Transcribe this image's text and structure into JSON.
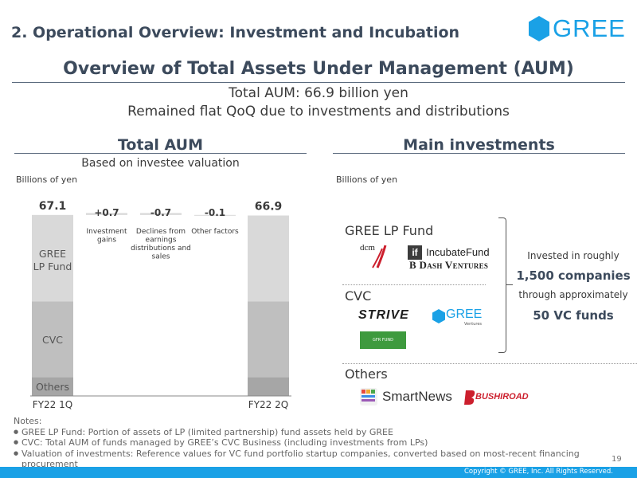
{
  "header": {
    "slide_title": "2. Operational Overview: Investment and Incubation",
    "logo_text": "GREE",
    "brand_color": "#1aa1e6"
  },
  "main": {
    "heading": "Overview of Total Assets Under Management (AUM)",
    "line1": "Total AUM: 66.9 billion yen",
    "line2": "Remained flat QoQ due to investments and distributions"
  },
  "left": {
    "heading": "Total AUM",
    "subheading": "Based on investee valuation",
    "unit": "Billions of yen"
  },
  "chart_data": {
    "type": "bar",
    "subtype": "waterfall",
    "title": "Total AUM",
    "subtitle": "Based on investee valuation",
    "ylabel": "Billions of yen",
    "categories": [
      "FY22 1Q",
      "Investment gains",
      "Declines from earnings distributions and sales",
      "Other factors",
      "FY22 2Q"
    ],
    "totals": [
      {
        "label": "FY22 1Q",
        "total": 67.1,
        "total_label": "67.1"
      },
      {
        "label": "FY22 2Q",
        "total": 66.9,
        "total_label": "66.9"
      }
    ],
    "deltas": [
      {
        "label": "Investment gains",
        "value": 0.7,
        "value_label": "+0.7"
      },
      {
        "label": "Declines from earnings distributions and sales",
        "value": -0.7,
        "value_label": "-0.7"
      },
      {
        "label": "Other factors",
        "value": -0.1,
        "value_label": "-0.1"
      }
    ],
    "series": [
      {
        "name": "Others",
        "label": "Others",
        "values_1q": 7,
        "values_2q": 7,
        "color": "#a6a6a6"
      },
      {
        "name": "CVC",
        "label": "CVC",
        "values_1q": 28,
        "values_2q": 28,
        "color": "#bfbfbf"
      },
      {
        "name": "GREE LP Fund",
        "label": "GREE\nLP Fund",
        "values_1q": 32.1,
        "values_2q": 31.9,
        "color": "#d9d9d9"
      }
    ],
    "ylim": [
      0,
      70
    ]
  },
  "right": {
    "heading": "Main investments",
    "unit": "Billions of yen",
    "groups": [
      {
        "label": "GREE LP Fund",
        "logos": [
          "dcm",
          "IncubateFund",
          "B Dash Ventures"
        ]
      },
      {
        "label": "CVC",
        "logos": [
          "STRIVE",
          "GREE Ventures",
          "GFR FUND"
        ]
      },
      {
        "label": "Others",
        "logos": [
          "SmartNews",
          "BUSHIROAD"
        ]
      }
    ],
    "summary": {
      "line1": "Invested in roughly",
      "line2": "1,500 companies",
      "line3": "through approximately",
      "line4": "50 VC funds"
    }
  },
  "notes": {
    "title": "Notes:",
    "items": [
      "GREE LP Fund: Portion of assets of LP (limited partnership) fund assets held by GREE",
      "CVC: Total AUM of funds managed by GREE’s CVC Business (including investments from LPs)",
      "Valuation of investments: Reference values for VC fund portfolio startup companies, converted based on most-recent financing procurement"
    ]
  },
  "footer": {
    "page_number": "19",
    "copyright": "Copyright © GREE, Inc. All Rights Reserved."
  }
}
